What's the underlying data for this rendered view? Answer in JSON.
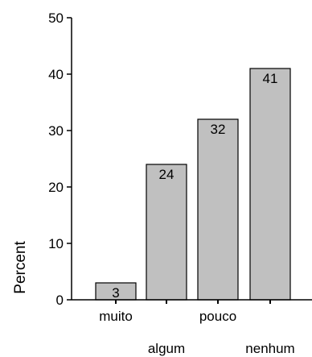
{
  "chart_data": {
    "type": "bar",
    "title": "",
    "xlabel": "",
    "ylabel": "Percent",
    "categories": [
      "muito",
      "algum",
      "pouco",
      "nenhum"
    ],
    "values": [
      3,
      24,
      32,
      41
    ],
    "data_labels": [
      "3",
      "24",
      "32",
      "41"
    ],
    "y_ticks": [
      0,
      10,
      20,
      30,
      40,
      50
    ],
    "ylim": [
      0,
      50
    ],
    "grid": false,
    "legend": "none",
    "colors": {
      "bar_fill": "#c0c0c0",
      "bar_stroke": "#000000",
      "axis": "#000000"
    }
  }
}
